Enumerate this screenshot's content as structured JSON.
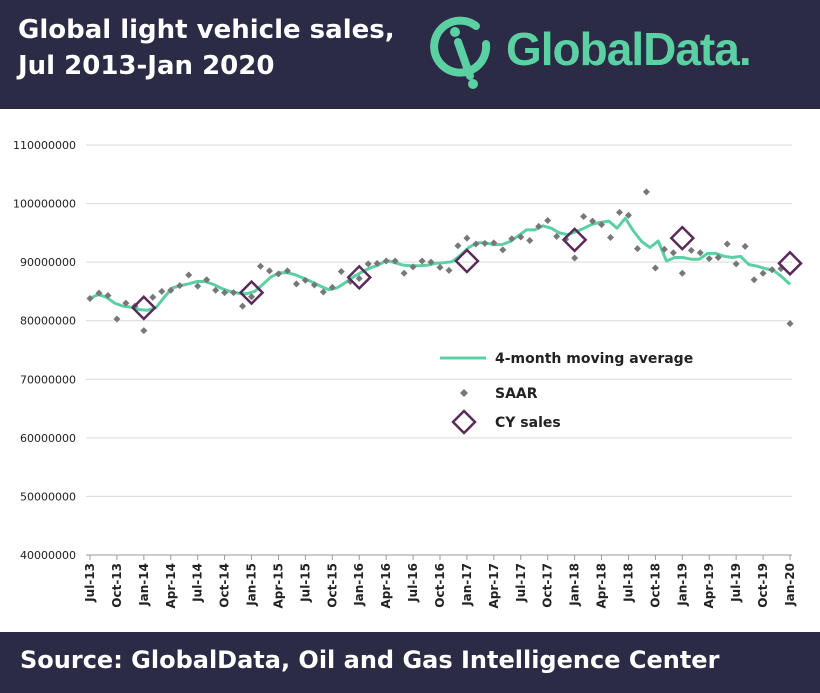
{
  "header": {
    "title_line1": "Global light vehicle sales,",
    "title_line2": "Jul 2013-Jan 2020",
    "brand": "GlobalData."
  },
  "footer": {
    "source": "Source:  GlobalData, Oil and Gas Intelligence Center"
  },
  "colors": {
    "header_bg": "#2b2b45",
    "moving_avg": "#5bd0a3",
    "saar": "#777777",
    "cy": "#5a2a5a"
  },
  "chart_data": {
    "type": "line",
    "title": "Global light vehicle sales, Jul 2013-Jan 2020",
    "ylim": [
      40000000,
      110000000
    ],
    "yticks": [
      "40000000",
      "50000000",
      "60000000",
      "70000000",
      "80000000",
      "90000000",
      "100000000",
      "110000000"
    ],
    "xticks": [
      "Jul-13",
      "Oct-13",
      "Jan-14",
      "Apr-14",
      "Jul-14",
      "Oct-14",
      "Jan-15",
      "Apr-15",
      "Jul-15",
      "Oct-15",
      "Jan-16",
      "Apr-16",
      "Jul-16",
      "Oct-16",
      "Jan-17",
      "Apr-17",
      "Jul-17",
      "Oct-17",
      "Jan-18",
      "Apr-18",
      "Jul-18",
      "Oct-18",
      "Jan-19",
      "Apr-19",
      "Jul-19",
      "Oct-19",
      "Jan-20"
    ],
    "legend": [
      "4-month moving average",
      "SAAR",
      "CY sales"
    ],
    "legend_position": "center-right",
    "series": [
      {
        "name": "4-month moving average",
        "kind": "line",
        "values": [
          83800000,
          84500000,
          84000000,
          83000000,
          82500000,
          82300000,
          81900000,
          81800000,
          82200000,
          84000000,
          85600000,
          86000000,
          86300000,
          86700000,
          86700000,
          86200000,
          85500000,
          85000000,
          84700000,
          84600000,
          85000000,
          86200000,
          87500000,
          88200000,
          88200000,
          87800000,
          87200000,
          86600000,
          85900000,
          85300000,
          85600000,
          86500000,
          87500000,
          88300000,
          89000000,
          89500000,
          90300000,
          89900000,
          89500000,
          89400000,
          89400000,
          89500000,
          89800000,
          89900000,
          90100000,
          91200000,
          92500000,
          93300000,
          93300000,
          93000000,
          93000000,
          93500000,
          94500000,
          95500000,
          95500000,
          96200000,
          95800000,
          95000000,
          94700000,
          95200000,
          95800000,
          96500000,
          96800000,
          97000000,
          95800000,
          97500000,
          95300000,
          93500000,
          92500000,
          93600000,
          90200000,
          90800000,
          90800000,
          90500000,
          90500000,
          91500000,
          91500000,
          91000000,
          90800000,
          91000000,
          89600000,
          89300000,
          88900000,
          88600000,
          87500000,
          86200000
        ]
      },
      {
        "name": "SAAR",
        "kind": "scatter",
        "values": [
          83800000,
          84700000,
          84300000,
          80300000,
          83000000,
          82500000,
          78300000,
          84000000,
          85000000,
          85200000,
          86000000,
          87800000,
          85900000,
          87000000,
          85200000,
          84800000,
          84800000,
          82500000,
          84100000,
          89300000,
          88500000,
          88000000,
          88500000,
          86300000,
          86900000,
          86100000,
          84900000,
          85700000,
          88400000,
          86700000,
          87200000,
          89700000,
          89800000,
          90200000,
          90200000,
          88100000,
          89200000,
          90200000,
          90000000,
          89100000,
          88600000,
          92800000,
          94100000,
          93100000,
          93200000,
          93300000,
          92100000,
          94000000,
          94300000,
          93700000,
          96100000,
          97100000,
          94400000,
          93900000,
          90700000,
          97800000,
          97000000,
          96400000,
          94200000,
          98500000,
          98000000,
          92300000,
          102000000,
          89000000,
          92200000,
          91600000,
          88100000,
          92000000,
          91600000,
          90600000,
          90800000,
          93100000,
          89700000,
          92700000,
          87000000,
          88100000,
          88700000,
          88900000,
          79500000
        ]
      },
      {
        "name": "CY sales",
        "kind": "marker",
        "points": [
          [
            "Jan-14",
            82200000
          ],
          [
            "Jan-15",
            84800000
          ],
          [
            "Jan-16",
            87400000
          ],
          [
            "Jan-17",
            90200000
          ],
          [
            "Jan-18",
            93800000
          ],
          [
            "Jan-19",
            94100000
          ],
          [
            "Jan-20",
            89800000
          ]
        ]
      }
    ]
  }
}
